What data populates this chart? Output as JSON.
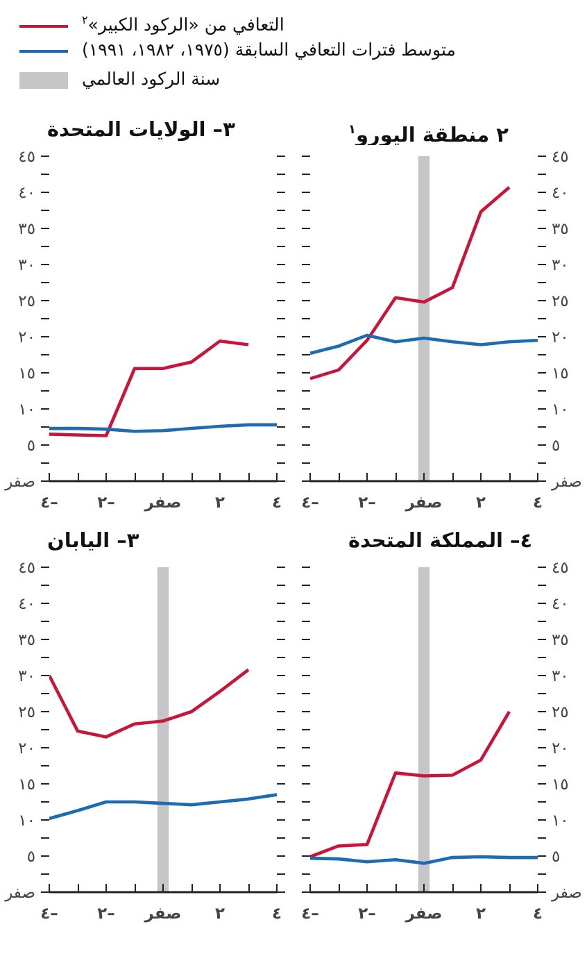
{
  "chart_data": [
    {
      "type": "line",
      "title": "٣– الولايات المتحدة",
      "x": [
        -4,
        -3,
        -2,
        -1,
        0,
        1,
        2,
        3,
        4
      ],
      "xlim": [
        -4,
        4
      ],
      "xticks": [
        {
          "value": -4,
          "label": "٤–"
        },
        {
          "value": -3,
          "label": null
        },
        {
          "value": -2,
          "label": "٢–"
        },
        {
          "value": -1,
          "label": null
        },
        {
          "value": 0,
          "label": "صفر"
        },
        {
          "value": 1,
          "label": null
        },
        {
          "value": 2,
          "label": "٢"
        },
        {
          "value": 3,
          "label": null
        },
        {
          "value": 4,
          "label": "٤"
        }
      ],
      "ylim": [
        0,
        45
      ],
      "yticks": [
        {
          "value": 0,
          "label": "صفر"
        },
        {
          "value": 2.5,
          "label": null
        },
        {
          "value": 5,
          "label": "٥"
        },
        {
          "value": 7.5,
          "label": null
        },
        {
          "value": 10,
          "label": "١٠"
        },
        {
          "value": 12.5,
          "label": null
        },
        {
          "value": 15,
          "label": "١٥"
        },
        {
          "value": 17.5,
          "label": null
        },
        {
          "value": 20,
          "label": "٢٠"
        },
        {
          "value": 22.5,
          "label": null
        },
        {
          "value": 25,
          "label": "٢٥"
        },
        {
          "value": 27.5,
          "label": null
        },
        {
          "value": 30,
          "label": "٣٠"
        },
        {
          "value": 32.5,
          "label": null
        },
        {
          "value": 35,
          "label": "٣٥"
        },
        {
          "value": 37.5,
          "label": null
        },
        {
          "value": 40,
          "label": "٤٠"
        },
        {
          "value": 42.5,
          "label": null
        },
        {
          "value": 45,
          "label": "٤٥"
        }
      ],
      "series": [
        {
          "color": "#c8163a",
          "values": [
            6.5,
            6.4,
            6.3,
            15.6,
            15.6,
            16.5,
            19.4,
            18.9,
            null
          ]
        },
        {
          "color": "#1f6bb0",
          "values": [
            7.3,
            7.3,
            7.2,
            6.9,
            7.0,
            7.3,
            7.6,
            7.8,
            7.8
          ]
        }
      ]
    },
    {
      "type": "line",
      "title": "٢ منطقة اليورو$^{١}$",
      "x": [
        -4,
        -3,
        -2,
        -1,
        0,
        1,
        2,
        3,
        4
      ],
      "xlim": [
        -4,
        4
      ],
      "xticks": [
        {
          "value": -4,
          "label": "٤–"
        },
        {
          "value": -3,
          "label": null
        },
        {
          "value": -2,
          "label": "٢–"
        },
        {
          "value": -1,
          "label": null
        },
        {
          "value": 0,
          "label": "صفر"
        },
        {
          "value": 1,
          "label": null
        },
        {
          "value": 2,
          "label": "٢"
        },
        {
          "value": 3,
          "label": null
        },
        {
          "value": 4,
          "label": "٤"
        }
      ],
      "ylim": [
        0,
        45
      ],
      "yticks": [
        {
          "value": 0,
          "label": "صفر"
        },
        {
          "value": 2.5,
          "label": null
        },
        {
          "value": 5,
          "label": "٥"
        },
        {
          "value": 7.5,
          "label": null
        },
        {
          "value": 10,
          "label": "١٠"
        },
        {
          "value": 12.5,
          "label": null
        },
        {
          "value": 15,
          "label": "١٥"
        },
        {
          "value": 17.5,
          "label": null
        },
        {
          "value": 20,
          "label": "٢٠"
        },
        {
          "value": 22.5,
          "label": null
        },
        {
          "value": 25,
          "label": "٢٥"
        },
        {
          "value": 27.5,
          "label": null
        },
        {
          "value": 30,
          "label": "٣٠"
        },
        {
          "value": 32.5,
          "label": null
        },
        {
          "value": 35,
          "label": "٣٥"
        },
        {
          "value": 37.5,
          "label": null
        },
        {
          "value": 40,
          "label": "٤٠"
        },
        {
          "value": 42.5,
          "label": null
        },
        {
          "value": 45,
          "label": "٤٥"
        }
      ],
      "legend": "top",
      "bands": [
        {
          "axis": "x",
          "from": -0.2,
          "to": 0.2,
          "label": "سنة الركود العالمي",
          "color": "#c6c6c8"
        }
      ],
      "series": [
        {
          "name": "التعافي من «الركود الكبير»$^{٢}$",
          "color": "#c8163a",
          "values": [
            14.2,
            15.4,
            19.5,
            25.4,
            24.8,
            26.8,
            37.3,
            40.7,
            null
          ]
        },
        {
          "name": "متوسط فترات التعافي السابقة (١٩٧٥، ١٩٨٢، ١٩٩١)",
          "color": "#1f6bb0",
          "values": [
            17.7,
            18.7,
            20.2,
            19.3,
            19.8,
            19.3,
            18.9,
            19.3,
            19.5
          ]
        }
      ]
    },
    {
      "type": "line",
      "title": "٣– اليابان",
      "x": [
        -4,
        -3,
        -2,
        -1,
        0,
        1,
        2,
        3,
        4
      ],
      "xlim": [
        -4,
        4
      ],
      "xticks": [
        {
          "value": -4,
          "label": "٤–"
        },
        {
          "value": -3,
          "label": null
        },
        {
          "value": -2,
          "label": "٢–"
        },
        {
          "value": -1,
          "label": null
        },
        {
          "value": 0,
          "label": "صفر"
        },
        {
          "value": 1,
          "label": null
        },
        {
          "value": 2,
          "label": "٢"
        },
        {
          "value": 3,
          "label": null
        },
        {
          "value": 4,
          "label": "٤"
        }
      ],
      "ylim": [
        0,
        45
      ],
      "yticks": [
        {
          "value": 0,
          "label": "صفر"
        },
        {
          "value": 2.5,
          "label": null
        },
        {
          "value": 5,
          "label": "٥"
        },
        {
          "value": 7.5,
          "label": null
        },
        {
          "value": 10,
          "label": "١٠"
        },
        {
          "value": 12.5,
          "label": null
        },
        {
          "value": 15,
          "label": "١٥"
        },
        {
          "value": 17.5,
          "label": null
        },
        {
          "value": 20,
          "label": "٢٠"
        },
        {
          "value": 22.5,
          "label": null
        },
        {
          "value": 25,
          "label": "٢٥"
        },
        {
          "value": 27.5,
          "label": null
        },
        {
          "value": 30,
          "label": "٣٠"
        },
        {
          "value": 32.5,
          "label": null
        },
        {
          "value": 35,
          "label": "٣٥"
        },
        {
          "value": 37.5,
          "label": null
        },
        {
          "value": 40,
          "label": "٤٠"
        },
        {
          "value": 42.5,
          "label": null
        },
        {
          "value": 45,
          "label": "٤٥"
        }
      ],
      "bands": [
        {
          "axis": "x",
          "from": -0.2,
          "to": 0.2,
          "color": "#c6c6c8"
        }
      ],
      "series": [
        {
          "color": "#c8163a",
          "values": [
            30.0,
            22.3,
            21.5,
            23.3,
            23.7,
            25.0,
            27.8,
            30.8,
            null
          ]
        },
        {
          "color": "#1f6bb0",
          "values": [
            10.2,
            11.3,
            12.5,
            12.5,
            12.3,
            12.1,
            12.5,
            12.9,
            13.5
          ]
        }
      ]
    },
    {
      "type": "line",
      "title": "٤– المملكة المتحدة",
      "x": [
        -4,
        -3,
        -2,
        -1,
        0,
        1,
        2,
        3,
        4
      ],
      "xlim": [
        -4,
        4
      ],
      "xticks": [
        {
          "value": -4,
          "label": "٤–"
        },
        {
          "value": -3,
          "label": null
        },
        {
          "value": -2,
          "label": "٢–"
        },
        {
          "value": -1,
          "label": null
        },
        {
          "value": 0,
          "label": "صفر"
        },
        {
          "value": 1,
          "label": null
        },
        {
          "value": 2,
          "label": "٢"
        },
        {
          "value": 3,
          "label": null
        },
        {
          "value": 4,
          "label": "٤"
        }
      ],
      "ylim": [
        0,
        45
      ],
      "yticks": [
        {
          "value": 0,
          "label": "صفر"
        },
        {
          "value": 2.5,
          "label": null
        },
        {
          "value": 5,
          "label": "٥"
        },
        {
          "value": 7.5,
          "label": null
        },
        {
          "value": 10,
          "label": "١٠"
        },
        {
          "value": 12.5,
          "label": null
        },
        {
          "value": 15,
          "label": "١٥"
        },
        {
          "value": 17.5,
          "label": null
        },
        {
          "value": 20,
          "label": "٢٠"
        },
        {
          "value": 22.5,
          "label": null
        },
        {
          "value": 25,
          "label": "٢٥"
        },
        {
          "value": 27.5,
          "label": null
        },
        {
          "value": 30,
          "label": "٣٠"
        },
        {
          "value": 32.5,
          "label": null
        },
        {
          "value": 35,
          "label": "٣٥"
        },
        {
          "value": 37.5,
          "label": null
        },
        {
          "value": 40,
          "label": "٤٠"
        },
        {
          "value": 42.5,
          "label": null
        },
        {
          "value": 45,
          "label": "٤٥"
        }
      ],
      "bands": [
        {
          "axis": "x",
          "from": -0.2,
          "to": 0.2,
          "color": "#c6c6c8"
        }
      ],
      "series": [
        {
          "color": "#c8163a",
          "values": [
            4.9,
            6.4,
            6.6,
            16.5,
            16.1,
            16.2,
            18.3,
            25.0,
            null
          ]
        },
        {
          "color": "#1f6bb0",
          "values": [
            4.7,
            4.6,
            4.2,
            4.5,
            4.0,
            4.8,
            4.9,
            4.8,
            4.8
          ]
        }
      ]
    }
  ]
}
